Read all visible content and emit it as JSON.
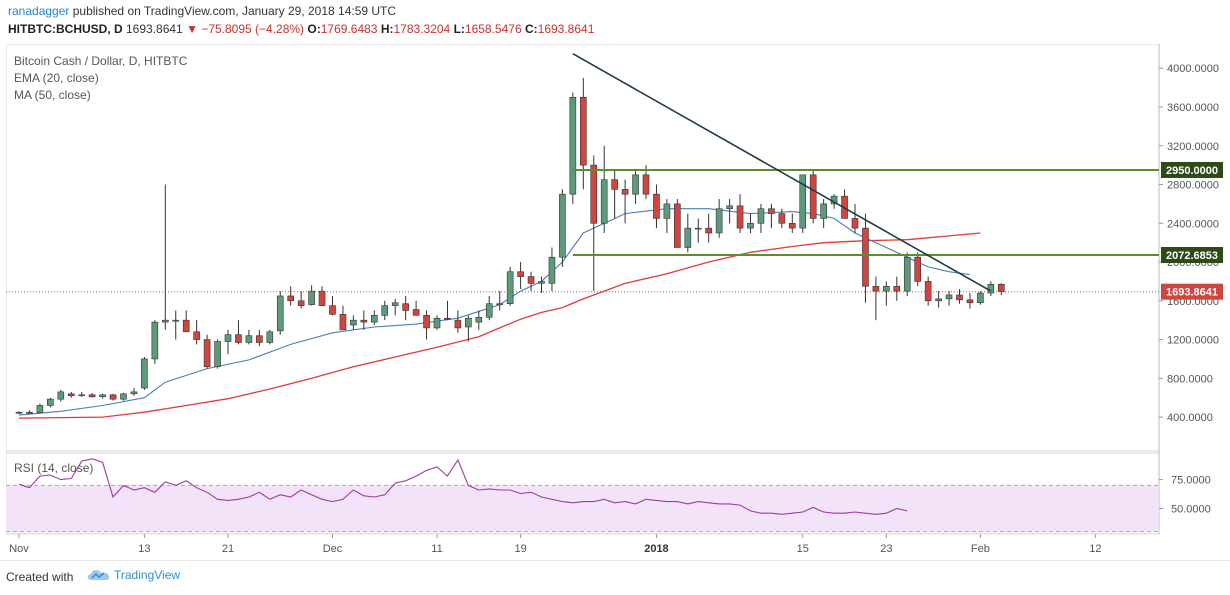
{
  "header": {
    "author": "ranadagger",
    "published": "published on TradingView.com, January 29, 2018 14:59 UTC",
    "symbol": "HITBTC:BCHUSD, D",
    "last": "1693.8641",
    "change": "−75.8095 (−4.28%)",
    "o_label": "O:",
    "o_value": "1769.6483",
    "h_label": "H:",
    "h_value": "1783.3204",
    "l_label": "L:",
    "l_value": "1658.5476",
    "c_label": "C:",
    "c_value": "1693.8641"
  },
  "legend": {
    "title": "Bitcoin Cash / Dollar, D, HITBTC",
    "ema": "EMA (20, close)",
    "ma": "MA (50, close)",
    "rsi": "RSI (14, close)"
  },
  "footer": {
    "created": "Created with",
    "brand": "TradingView",
    "brand_icon": "tradingview-cloud-icon"
  },
  "colors": {
    "up": "#5c9a7a",
    "down": "#d0453f",
    "ema": "#4a7fb5",
    "ma": "#e23a3a",
    "trend": "#1f3b47",
    "level": "#5b8f2a",
    "rsi": "#9e3aa5",
    "rsi_band": "#f3e3f8"
  },
  "chart_data": {
    "type": "candlestick",
    "title": "Bitcoin Cash / Dollar, D, HITBTC",
    "price_axis": {
      "ticks": [
        400,
        800,
        1200,
        1600,
        2000,
        2400,
        2800,
        3200,
        3600,
        4000
      ],
      "tick_labels": [
        "400.0000",
        "800.0000",
        "1200.0000",
        "1600.0000",
        "2000.0000",
        "2400.0000",
        "2800.0000",
        "3200.0000",
        "3600.0000",
        "4000.0000"
      ],
      "range": [
        50,
        4250
      ]
    },
    "rsi_axis": {
      "ticks": [
        50,
        75
      ],
      "tick_labels": [
        "50.0000",
        "75.0000"
      ],
      "range": [
        28,
        98
      ],
      "band": [
        30,
        70
      ]
    },
    "x_axis": {
      "start_date": "2017-10-31",
      "ticks": [
        {
          "day": 1,
          "label": "Nov"
        },
        {
          "day": 13,
          "label": "13"
        },
        {
          "day": 21,
          "label": "21"
        },
        {
          "day": 31,
          "label": "Dec"
        },
        {
          "day": 41,
          "label": "11"
        },
        {
          "day": 49,
          "label": "19"
        },
        {
          "day": 62,
          "label": "2018"
        },
        {
          "day": 76,
          "label": "15"
        },
        {
          "day": 84,
          "label": "23"
        },
        {
          "day": 93,
          "label": "Feb"
        },
        {
          "day": 104,
          "label": "12"
        }
      ]
    },
    "candles": [
      [
        450,
        460,
        430,
        450
      ],
      [
        450,
        470,
        440,
        445
      ],
      [
        445,
        540,
        440,
        520
      ],
      [
        520,
        600,
        500,
        585
      ],
      [
        585,
        680,
        560,
        660
      ],
      [
        640,
        660,
        600,
        620
      ],
      [
        620,
        660,
        610,
        630
      ],
      [
        630,
        650,
        600,
        610
      ],
      [
        610,
        640,
        590,
        630
      ],
      [
        630,
        640,
        570,
        585
      ],
      [
        585,
        650,
        570,
        640
      ],
      [
        640,
        700,
        620,
        660
      ],
      [
        700,
        1020,
        680,
        1000
      ],
      [
        1000,
        1400,
        950,
        1380
      ],
      [
        1380,
        2800,
        1300,
        1400
      ],
      [
        1400,
        1500,
        1200,
        1400
      ],
      [
        1400,
        1500,
        1300,
        1280
      ],
      [
        1280,
        1400,
        1150,
        1200
      ],
      [
        1200,
        1250,
        900,
        920
      ],
      [
        920,
        1200,
        900,
        1180
      ],
      [
        1180,
        1300,
        1050,
        1250
      ],
      [
        1250,
        1400,
        1150,
        1170
      ],
      [
        1170,
        1300,
        1150,
        1240
      ],
      [
        1240,
        1300,
        1130,
        1170
      ],
      [
        1170,
        1300,
        1150,
        1280
      ],
      [
        1290,
        1700,
        1250,
        1650
      ],
      [
        1650,
        1750,
        1550,
        1600
      ],
      [
        1600,
        1700,
        1520,
        1550
      ],
      [
        1560,
        1760,
        1550,
        1700
      ],
      [
        1700,
        1750,
        1550,
        1550
      ],
      [
        1550,
        1650,
        1450,
        1460
      ],
      [
        1460,
        1550,
        1300,
        1300
      ],
      [
        1350,
        1450,
        1300,
        1400
      ],
      [
        1400,
        1500,
        1300,
        1380
      ],
      [
        1380,
        1500,
        1350,
        1450
      ],
      [
        1450,
        1600,
        1400,
        1550
      ],
      [
        1550,
        1620,
        1450,
        1580
      ],
      [
        1570,
        1650,
        1400,
        1500
      ],
      [
        1510,
        1600,
        1450,
        1450
      ],
      [
        1450,
        1500,
        1200,
        1320
      ],
      [
        1320,
        1450,
        1300,
        1420
      ],
      [
        1420,
        1600,
        1400,
        1410
      ],
      [
        1400,
        1500,
        1270,
        1320
      ],
      [
        1330,
        1450,
        1180,
        1420
      ],
      [
        1380,
        1500,
        1300,
        1430
      ],
      [
        1430,
        1650,
        1400,
        1570
      ],
      [
        1570,
        1700,
        1500,
        1570
      ],
      [
        1570,
        1950,
        1550,
        1900
      ],
      [
        1900,
        2000,
        1720,
        1850
      ],
      [
        1850,
        1900,
        1700,
        1780
      ],
      [
        1780,
        1850,
        1680,
        1800
      ],
      [
        1780,
        2150,
        1700,
        2050
      ],
      [
        2050,
        2750,
        1950,
        2700
      ],
      [
        2700,
        3750,
        2600,
        3700
      ],
      [
        3700,
        3900,
        2750,
        3000
      ],
      [
        3000,
        3100,
        1700,
        2400
      ],
      [
        2400,
        3200,
        2300,
        2850
      ],
      [
        2850,
        2950,
        2450,
        2750
      ],
      [
        2750,
        2850,
        2400,
        2700
      ],
      [
        2700,
        2950,
        2600,
        2900
      ],
      [
        2900,
        3000,
        2650,
        2700
      ],
      [
        2700,
        2800,
        2350,
        2450
      ],
      [
        2450,
        2650,
        2300,
        2600
      ],
      [
        2600,
        2650,
        2150,
        2150
      ],
      [
        2150,
        2500,
        2100,
        2350
      ],
      [
        2350,
        2450,
        2200,
        2350
      ],
      [
        2350,
        2500,
        2200,
        2300
      ],
      [
        2300,
        2650,
        2250,
        2550
      ],
      [
        2550,
        2650,
        2400,
        2580
      ],
      [
        2580,
        2700,
        2300,
        2350
      ],
      [
        2350,
        2500,
        2300,
        2400
      ],
      [
        2400,
        2600,
        2300,
        2550
      ],
      [
        2550,
        2600,
        2350,
        2500
      ],
      [
        2500,
        2550,
        2350,
        2400
      ],
      [
        2400,
        2500,
        2300,
        2350
      ],
      [
        2350,
        2900,
        2300,
        2900
      ],
      [
        2900,
        2950,
        2400,
        2450
      ],
      [
        2450,
        2650,
        2350,
        2600
      ],
      [
        2600,
        2700,
        2550,
        2680
      ],
      [
        2680,
        2750,
        2450,
        2450
      ],
      [
        2450,
        2600,
        2300,
        2350
      ],
      [
        2350,
        2500,
        1580,
        1750
      ],
      [
        1750,
        1850,
        1400,
        1700
      ],
      [
        1700,
        1800,
        1550,
        1750
      ],
      [
        1750,
        1850,
        1600,
        1700
      ],
      [
        1700,
        2100,
        1650,
        2050
      ],
      [
        2050,
        2100,
        1750,
        1800
      ],
      [
        1800,
        1850,
        1550,
        1600
      ],
      [
        1600,
        1700,
        1530,
        1620
      ],
      [
        1620,
        1700,
        1550,
        1660
      ],
      [
        1660,
        1720,
        1570,
        1610
      ],
      [
        1610,
        1680,
        1520,
        1580
      ],
      [
        1580,
        1700,
        1560,
        1680
      ],
      [
        1680,
        1800,
        1650,
        1770
      ],
      [
        1770,
        1783,
        1658,
        1694
      ]
    ],
    "ema20": [
      [
        1,
        420
      ],
      [
        5,
        460
      ],
      [
        9,
        520
      ],
      [
        13,
        600
      ],
      [
        15,
        760
      ],
      [
        19,
        900
      ],
      [
        23,
        990
      ],
      [
        27,
        1150
      ],
      [
        31,
        1270
      ],
      [
        35,
        1330
      ],
      [
        39,
        1360
      ],
      [
        43,
        1420
      ],
      [
        47,
        1560
      ],
      [
        49,
        1700
      ],
      [
        51,
        1800
      ],
      [
        53,
        2000
      ],
      [
        55,
        2300
      ],
      [
        59,
        2500
      ],
      [
        63,
        2550
      ],
      [
        67,
        2550
      ],
      [
        71,
        2500
      ],
      [
        75,
        2520
      ],
      [
        77,
        2500
      ],
      [
        79,
        2450
      ],
      [
        81,
        2300
      ],
      [
        84,
        2150
      ],
      [
        86,
        2050
      ],
      [
        88,
        1950
      ],
      [
        90,
        1900
      ],
      [
        92,
        1870
      ]
    ],
    "ma50": [
      [
        1,
        390
      ],
      [
        5,
        395
      ],
      [
        9,
        400
      ],
      [
        13,
        450
      ],
      [
        17,
        520
      ],
      [
        21,
        590
      ],
      [
        25,
        690
      ],
      [
        29,
        800
      ],
      [
        33,
        920
      ],
      [
        37,
        1020
      ],
      [
        41,
        1120
      ],
      [
        45,
        1230
      ],
      [
        47,
        1320
      ],
      [
        49,
        1410
      ],
      [
        51,
        1480
      ],
      [
        53,
        1530
      ],
      [
        55,
        1620
      ],
      [
        59,
        1780
      ],
      [
        63,
        1880
      ],
      [
        67,
        2000
      ],
      [
        71,
        2100
      ],
      [
        75,
        2160
      ],
      [
        78,
        2200
      ],
      [
        82,
        2220
      ],
      [
        86,
        2230
      ],
      [
        88,
        2250
      ],
      [
        90,
        2270
      ],
      [
        93,
        2300
      ]
    ],
    "rsi": [
      [
        1,
        71
      ],
      [
        3,
        68
      ],
      [
        5,
        78
      ],
      [
        7,
        79
      ],
      [
        9,
        75
      ],
      [
        11,
        76
      ],
      [
        13,
        91
      ],
      [
        15,
        93
      ],
      [
        17,
        90
      ],
      [
        19,
        60
      ],
      [
        21,
        70
      ],
      [
        23,
        66
      ],
      [
        25,
        68
      ],
      [
        27,
        64
      ],
      [
        29,
        73
      ],
      [
        31,
        70
      ],
      [
        33,
        74
      ],
      [
        35,
        68
      ],
      [
        37,
        64
      ],
      [
        39,
        58
      ],
      [
        41,
        57
      ],
      [
        43,
        58
      ],
      [
        45,
        60
      ],
      [
        47,
        64
      ],
      [
        49,
        58
      ],
      [
        51,
        62
      ],
      [
        53,
        60
      ],
      [
        55,
        66
      ],
      [
        57,
        62
      ],
      [
        59,
        58
      ],
      [
        61,
        56
      ],
      [
        63,
        58
      ],
      [
        65,
        66
      ],
      [
        67,
        61
      ],
      [
        69,
        60
      ],
      [
        71,
        62
      ],
      [
        73,
        72
      ],
      [
        75,
        74
      ],
      [
        77,
        78
      ],
      [
        79,
        83
      ],
      [
        81,
        86
      ],
      [
        83,
        78
      ],
      [
        85,
        92
      ],
      [
        87,
        70
      ],
      [
        89,
        66
      ],
      [
        91,
        67
      ],
      [
        93,
        66
      ],
      [
        95,
        66
      ],
      [
        97,
        63
      ],
      [
        99,
        64
      ],
      [
        101,
        60
      ],
      [
        103,
        58
      ],
      [
        105,
        56
      ],
      [
        107,
        55
      ],
      [
        109,
        56
      ],
      [
        111,
        56
      ],
      [
        113,
        58
      ],
      [
        115,
        55
      ],
      [
        117,
        56
      ],
      [
        119,
        54
      ],
      [
        121,
        58
      ],
      [
        123,
        57
      ],
      [
        125,
        56
      ],
      [
        127,
        56
      ],
      [
        129,
        54
      ],
      [
        131,
        56
      ],
      [
        133,
        55
      ],
      [
        135,
        54
      ],
      [
        137,
        54
      ],
      [
        139,
        53
      ],
      [
        141,
        48
      ],
      [
        143,
        46
      ],
      [
        145,
        46
      ],
      [
        147,
        45
      ],
      [
        149,
        46
      ],
      [
        151,
        47
      ],
      [
        153,
        51
      ],
      [
        155,
        47
      ],
      [
        157,
        46
      ],
      [
        159,
        46
      ],
      [
        161,
        47
      ],
      [
        163,
        46
      ],
      [
        165,
        45
      ],
      [
        167,
        46
      ],
      [
        169,
        50
      ],
      [
        171,
        48
      ]
    ],
    "levels": [
      2950,
      2072.6853
    ],
    "level_labels": [
      "2950.0000",
      "2072.6853"
    ],
    "last_price": 1693.8641,
    "last_label": "1693.8641",
    "trendline": [
      [
        54,
        4150
      ],
      [
        94,
        1700
      ]
    ]
  }
}
